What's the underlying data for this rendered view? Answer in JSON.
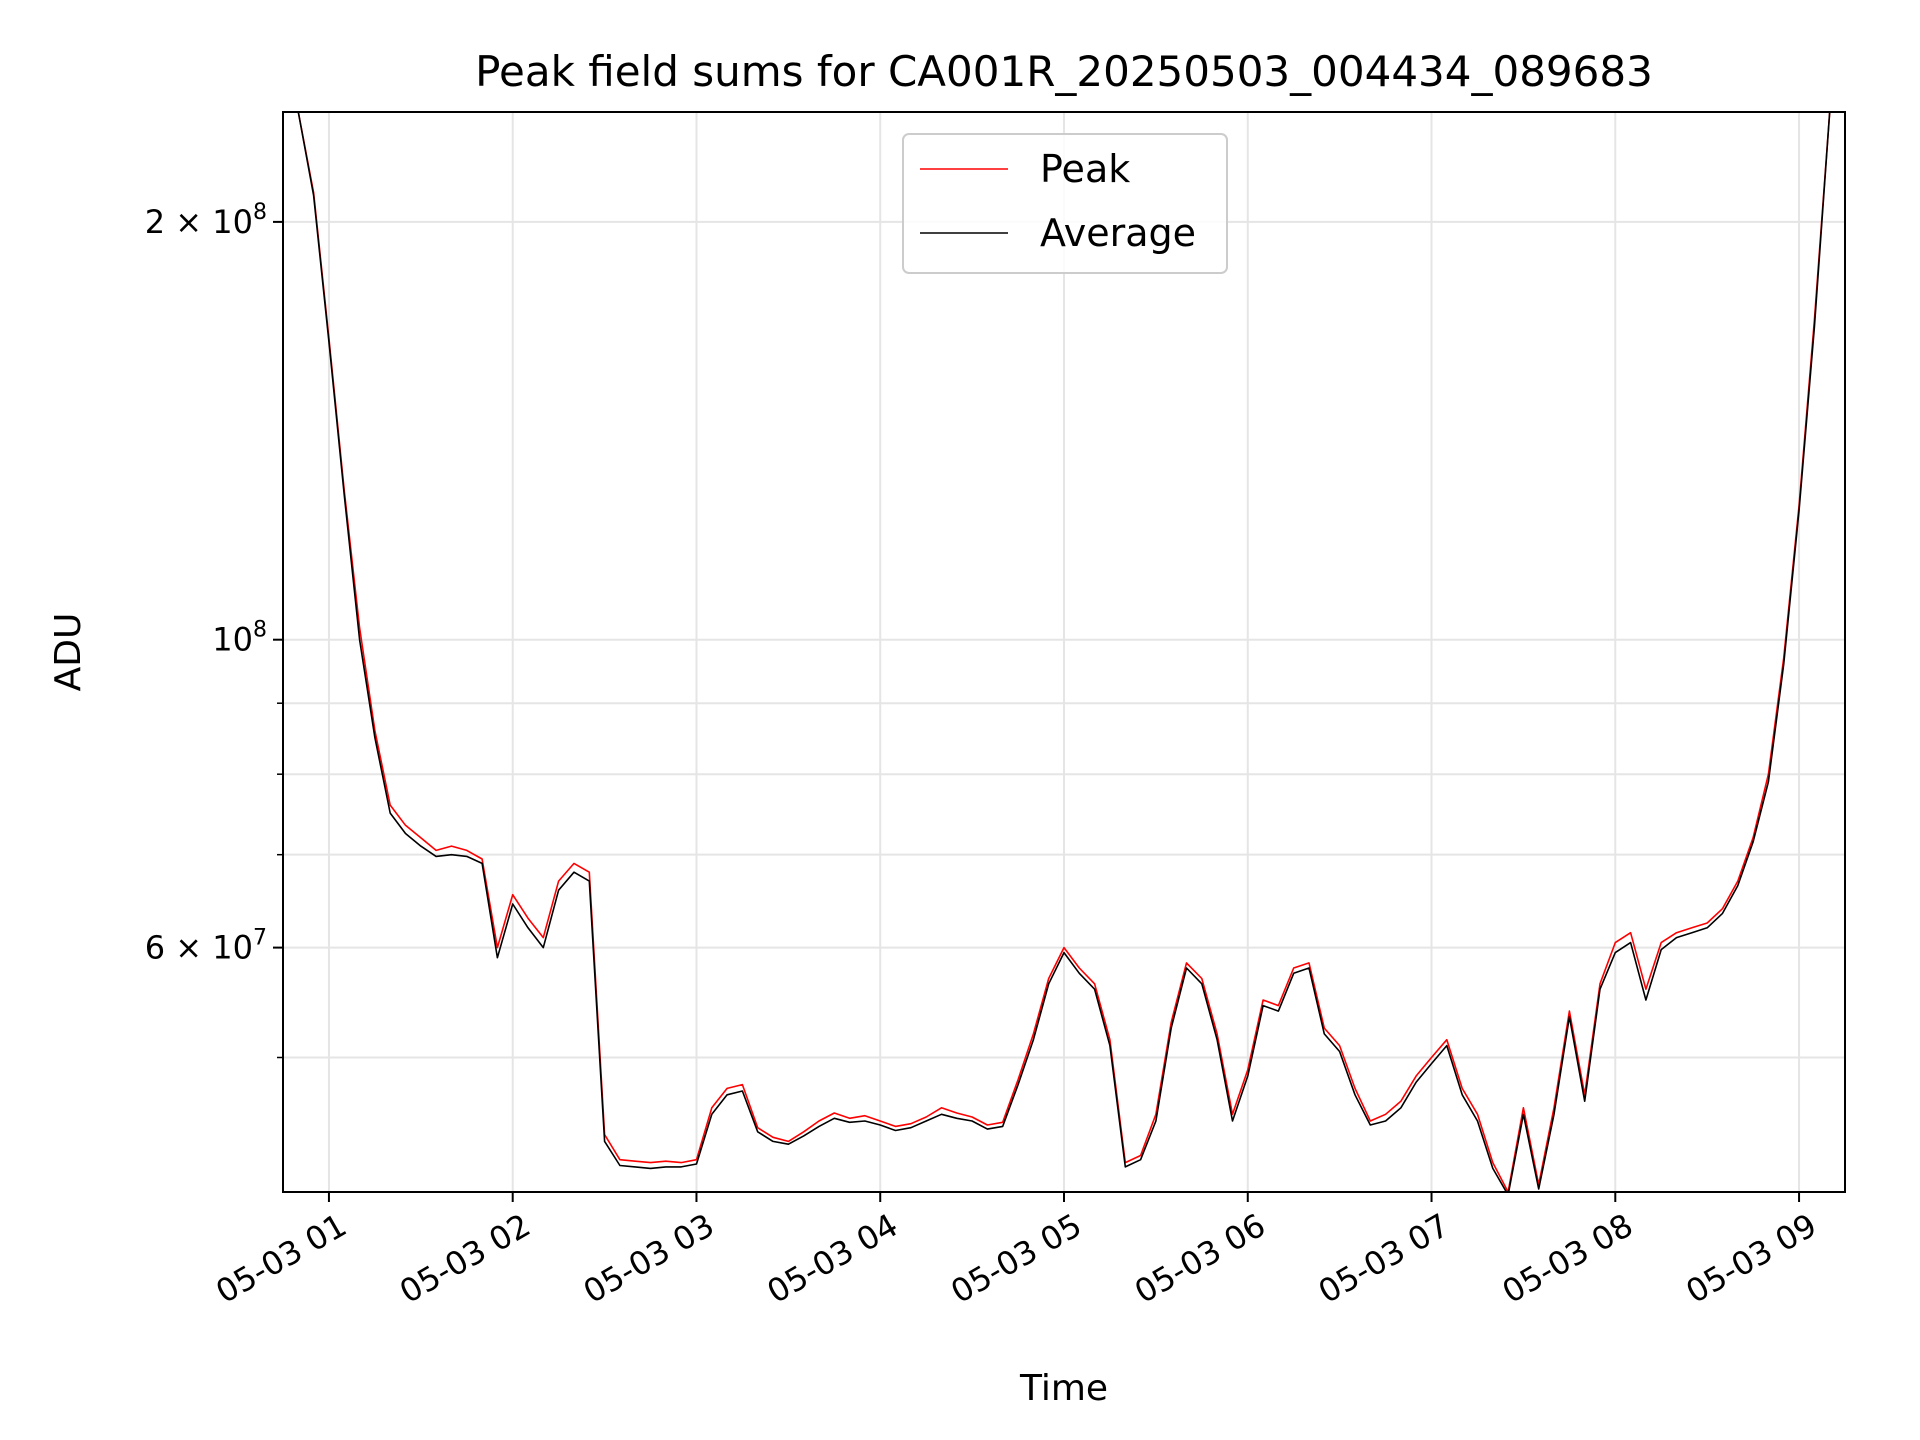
{
  "chart_data": {
    "type": "line",
    "title": "Peak field sums for CA001R_20250503_004434_089683",
    "xlabel": "Time",
    "ylabel": "ADU",
    "yscale": "log",
    "xlim": [
      "2025-05-03 00:45",
      "2025-05-03 09:15"
    ],
    "ylim": [
      40000000,
      240000000
    ],
    "grid": true,
    "legend_position": "upper center",
    "x_ticks": [
      "05-03 01",
      "05-03 02",
      "05-03 03",
      "05-03 04",
      "05-03 05",
      "05-03 06",
      "05-03 07",
      "05-03 08",
      "05-03 09"
    ],
    "y_ticks": [
      {
        "value": 60000000,
        "label_base": "6 × 10",
        "label_exp": "7"
      },
      {
        "value": 100000000,
        "label_base": "10",
        "label_exp": "8"
      },
      {
        "value": 200000000,
        "label_base": "2 × 10",
        "label_exp": "8"
      }
    ],
    "y_minor_ticks": [
      50000000,
      70000000,
      80000000,
      90000000
    ],
    "series": [
      {
        "name": "Peak",
        "color": "#ff0000",
        "x": [
          "00:50",
          "00:55",
          "01:00",
          "01:05",
          "01:10",
          "01:15",
          "01:20",
          "01:25",
          "01:30",
          "01:35",
          "01:40",
          "01:45",
          "01:50",
          "01:55",
          "02:00",
          "02:05",
          "02:10",
          "02:15",
          "02:20",
          "02:25",
          "02:30",
          "02:35",
          "02:40",
          "02:45",
          "02:50",
          "02:55",
          "03:00",
          "03:05",
          "03:10",
          "03:15",
          "03:20",
          "03:25",
          "03:30",
          "03:35",
          "03:40",
          "03:45",
          "03:50",
          "03:55",
          "04:00",
          "04:05",
          "04:10",
          "04:15",
          "04:20",
          "04:25",
          "04:30",
          "04:35",
          "04:40",
          "04:45",
          "04:50",
          "04:55",
          "05:00",
          "05:05",
          "05:10",
          "05:15",
          "05:20",
          "05:25",
          "05:30",
          "05:35",
          "05:40",
          "05:45",
          "05:50",
          "05:55",
          "06:00",
          "06:05",
          "06:10",
          "06:15",
          "06:20",
          "06:25",
          "06:30",
          "06:35",
          "06:40",
          "06:45",
          "06:50",
          "06:55",
          "07:00",
          "07:05",
          "07:10",
          "07:15",
          "07:20",
          "07:25",
          "07:30",
          "07:35",
          "07:40",
          "07:45",
          "07:50",
          "07:55",
          "08:00",
          "08:05",
          "08:10",
          "08:15",
          "08:20",
          "08:25",
          "08:30",
          "08:35",
          "08:40",
          "08:45",
          "08:50",
          "08:55",
          "09:00",
          "09:05",
          "09:10"
        ],
        "values": [
          240000000,
          210000000,
          165000000,
          128000000,
          102000000,
          86000000,
          76000000,
          73500000,
          72000000,
          70500000,
          71000000,
          70500000,
          69500000,
          60000000,
          65500000,
          63000000,
          61000000,
          67000000,
          69000000,
          68000000,
          44000000,
          42200000,
          42100000,
          42000000,
          42100000,
          42000000,
          42200000,
          46000000,
          47500000,
          47800000,
          44500000,
          43800000,
          43500000,
          44200000,
          45000000,
          45600000,
          45200000,
          45400000,
          45000000,
          44600000,
          44800000,
          45300000,
          46000000,
          45600000,
          45300000,
          44700000,
          44900000,
          48200000,
          52000000,
          57000000,
          60000000,
          58000000,
          56500000,
          51500000,
          42000000,
          42500000,
          45500000,
          53000000,
          58500000,
          57000000,
          52000000,
          45500000,
          49000000,
          55000000,
          54500000,
          58000000,
          58500000,
          52500000,
          51000000,
          47500000,
          45000000,
          45500000,
          46500000,
          48500000,
          50000000,
          51500000,
          47500000,
          45500000,
          42000000,
          40000000,
          46000000,
          40500000,
          46000000,
          54000000,
          47000000,
          56500000,
          60500000,
          61500000,
          56000000,
          60500000,
          61500000,
          62000000,
          62500000,
          64000000,
          67000000,
          72000000,
          80000000,
          97000000,
          125000000,
          170000000,
          240000000
        ]
      },
      {
        "name": "Average",
        "color": "#000000",
        "x": [
          "00:50",
          "00:55",
          "01:00",
          "01:05",
          "01:10",
          "01:15",
          "01:20",
          "01:25",
          "01:30",
          "01:35",
          "01:40",
          "01:45",
          "01:50",
          "01:55",
          "02:00",
          "02:05",
          "02:10",
          "02:15",
          "02:20",
          "02:25",
          "02:30",
          "02:35",
          "02:40",
          "02:45",
          "02:50",
          "02:55",
          "03:00",
          "03:05",
          "03:10",
          "03:15",
          "03:20",
          "03:25",
          "03:30",
          "03:35",
          "03:40",
          "03:45",
          "03:50",
          "03:55",
          "04:00",
          "04:05",
          "04:10",
          "04:15",
          "04:20",
          "04:25",
          "04:30",
          "04:35",
          "04:40",
          "04:45",
          "04:50",
          "04:55",
          "05:00",
          "05:05",
          "05:10",
          "05:15",
          "05:20",
          "05:25",
          "05:30",
          "05:35",
          "05:40",
          "05:45",
          "05:50",
          "05:55",
          "06:00",
          "06:05",
          "06:10",
          "06:15",
          "06:20",
          "06:25",
          "06:30",
          "06:35",
          "06:40",
          "06:45",
          "06:50",
          "06:55",
          "07:00",
          "07:05",
          "07:10",
          "07:15",
          "07:20",
          "07:25",
          "07:30",
          "07:35",
          "07:40",
          "07:45",
          "07:50",
          "07:55",
          "08:00",
          "08:05",
          "08:10",
          "08:15",
          "08:20",
          "08:25",
          "08:30",
          "08:35",
          "08:40",
          "08:45",
          "08:50",
          "08:55",
          "09:00",
          "09:05",
          "09:10"
        ],
        "values": [
          240000000,
          209000000,
          164000000,
          127000000,
          100000000,
          85000000,
          75000000,
          72500000,
          71000000,
          69800000,
          70000000,
          69800000,
          69000000,
          59000000,
          64500000,
          62000000,
          60000000,
          66000000,
          68000000,
          67000000,
          43500000,
          41800000,
          41700000,
          41600000,
          41700000,
          41700000,
          41900000,
          45500000,
          47000000,
          47300000,
          44200000,
          43500000,
          43300000,
          43900000,
          44600000,
          45200000,
          44900000,
          45000000,
          44700000,
          44300000,
          44500000,
          45000000,
          45500000,
          45200000,
          45000000,
          44400000,
          44600000,
          47800000,
          51500000,
          56500000,
          59500000,
          57500000,
          56000000,
          51000000,
          41700000,
          42200000,
          45000000,
          52500000,
          58000000,
          56500000,
          51500000,
          45000000,
          48500000,
          54500000,
          54000000,
          57500000,
          58000000,
          52000000,
          50500000,
          47000000,
          44700000,
          45000000,
          46000000,
          48000000,
          49500000,
          51000000,
          47000000,
          45000000,
          41600000,
          39800000,
          45500000,
          40200000,
          45500000,
          53500000,
          46500000,
          56000000,
          59500000,
          60500000,
          55000000,
          59800000,
          61000000,
          61500000,
          62000000,
          63500000,
          66500000,
          71500000,
          79000000,
          96000000,
          124000000,
          168000000,
          240000000
        ]
      }
    ]
  }
}
